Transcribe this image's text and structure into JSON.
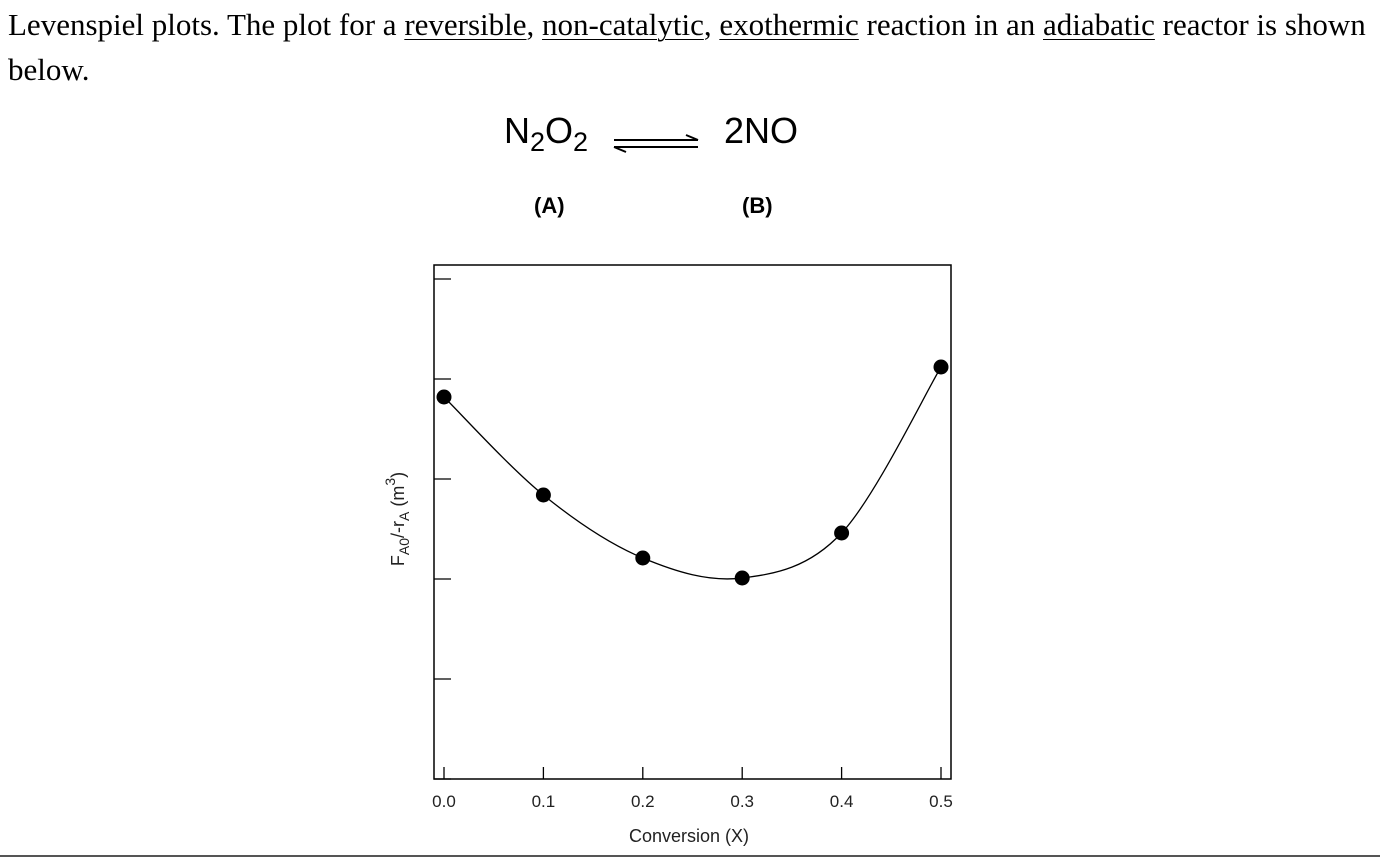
{
  "intro": {
    "t1": "Levenspiel plots.  The plot for a ",
    "reversible": "reversible",
    "c1": ", ",
    "non_catalytic": "non-catalytic",
    "c2": ", ",
    "exothermic": "exothermic",
    "t2": " reaction in an ",
    "adiabatic": "adiabatic",
    "t3": " reactor is shown below."
  },
  "reaction": {
    "reactant_n": "N",
    "reactant_n_sub": "2",
    "reactant_o": "O",
    "reactant_o_sub": "2",
    "product": "2NO",
    "label_a": "(A)",
    "label_b": "(B)"
  },
  "chart_data": {
    "type": "scatter",
    "xlabel": "Conversion (X)",
    "ylabel_main": "F",
    "ylabel_sub1": "A0",
    "ylabel_mid": "/-r",
    "ylabel_sub2": "A",
    "ylabel_unit": " (m",
    "ylabel_sup": "3",
    "ylabel_close": ")",
    "xlim": [
      0.0,
      0.5
    ],
    "ylim": [
      0,
      5.14
    ],
    "xticks": [
      "0.0",
      "0.1",
      "0.2",
      "0.3",
      "0.4",
      "0.5"
    ],
    "y_tick_count": 5,
    "y_ticks_labeled": false,
    "grid": false,
    "series": [
      {
        "x": [
          0.0,
          0.1,
          0.2,
          0.3,
          0.4,
          0.5
        ],
        "y": [
          3.82,
          2.84,
          2.21,
          2.01,
          2.46,
          4.12
        ]
      }
    ],
    "curve": "smooth"
  }
}
